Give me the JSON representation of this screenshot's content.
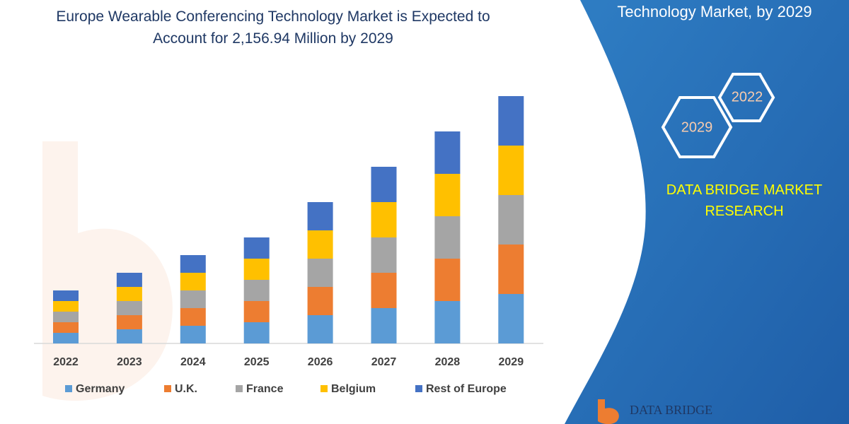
{
  "chart_data": {
    "type": "stacked_bar",
    "title": "Europe Wearable Conferencing Technology Market is Expected to Account for 2,156.94 Million by 2029",
    "categories": [
      "2022",
      "2023",
      "2024",
      "2025",
      "2026",
      "2027",
      "2028",
      "2029"
    ],
    "series": [
      {
        "name": "Germany",
        "color": "#5b9bd5",
        "values": [
          15,
          20,
          25,
          30,
          40,
          50,
          60,
          70
        ]
      },
      {
        "name": "U.K.",
        "color": "#ed7d31",
        "values": [
          15,
          20,
          25,
          30,
          40,
          50,
          60,
          70
        ]
      },
      {
        "name": "France",
        "color": "#a5a5a5",
        "values": [
          15,
          20,
          25,
          30,
          40,
          50,
          60,
          70
        ]
      },
      {
        "name": "Belgium",
        "color": "#ffc000",
        "values": [
          15,
          20,
          25,
          30,
          40,
          50,
          60,
          70
        ]
      },
      {
        "name": "Rest of Europe",
        "color": "#4472c4",
        "values": [
          15,
          20,
          25,
          30,
          40,
          50,
          60,
          70
        ]
      }
    ],
    "legend": "bottom"
  },
  "panel": {
    "heading": "Technology Market, by 2029",
    "hex_small": "2022",
    "hex_large": "2029",
    "brand": "DATA BRIDGE MARKET RESEARCH",
    "logo": "DATA BRIDGE"
  }
}
